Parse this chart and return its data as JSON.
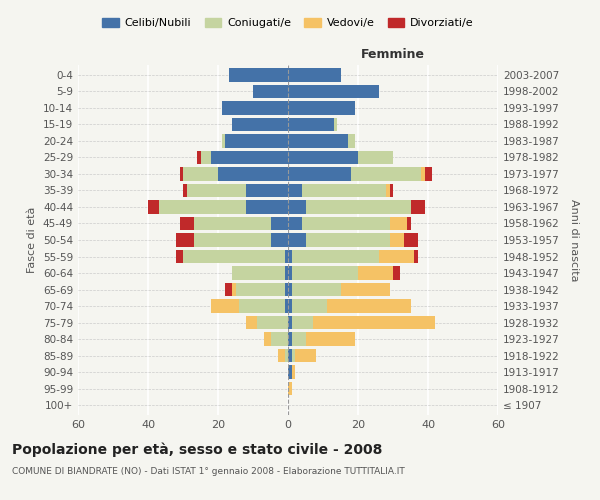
{
  "age_groups": [
    "100+",
    "95-99",
    "90-94",
    "85-89",
    "80-84",
    "75-79",
    "70-74",
    "65-69",
    "60-64",
    "55-59",
    "50-54",
    "45-49",
    "40-44",
    "35-39",
    "30-34",
    "25-29",
    "20-24",
    "15-19",
    "10-14",
    "5-9",
    "0-4"
  ],
  "birth_years": [
    "≤ 1907",
    "1908-1912",
    "1913-1917",
    "1918-1922",
    "1923-1927",
    "1928-1932",
    "1933-1937",
    "1938-1942",
    "1943-1947",
    "1948-1952",
    "1953-1957",
    "1958-1962",
    "1963-1967",
    "1968-1972",
    "1973-1977",
    "1978-1982",
    "1983-1987",
    "1988-1992",
    "1993-1997",
    "1998-2002",
    "2003-2007"
  ],
  "male": {
    "celibi": [
      0,
      0,
      0,
      0,
      0,
      0,
      1,
      1,
      1,
      1,
      5,
      5,
      12,
      12,
      20,
      22,
      18,
      16,
      19,
      10,
      17
    ],
    "coniugati": [
      0,
      0,
      0,
      1,
      5,
      9,
      13,
      14,
      15,
      29,
      22,
      22,
      25,
      17,
      10,
      3,
      1,
      0,
      0,
      0,
      0
    ],
    "vedovi": [
      0,
      0,
      0,
      2,
      2,
      3,
      8,
      1,
      0,
      0,
      0,
      0,
      0,
      0,
      0,
      0,
      0,
      0,
      0,
      0,
      0
    ],
    "divorziati": [
      0,
      0,
      0,
      0,
      0,
      0,
      0,
      2,
      0,
      2,
      5,
      4,
      3,
      1,
      1,
      1,
      0,
      0,
      0,
      0,
      0
    ]
  },
  "female": {
    "nubili": [
      0,
      0,
      1,
      1,
      1,
      1,
      1,
      1,
      1,
      1,
      5,
      4,
      5,
      4,
      18,
      20,
      17,
      13,
      19,
      26,
      15
    ],
    "coniugate": [
      0,
      0,
      0,
      1,
      4,
      6,
      10,
      14,
      19,
      25,
      24,
      25,
      30,
      24,
      20,
      10,
      2,
      1,
      0,
      0,
      0
    ],
    "vedove": [
      0,
      1,
      1,
      6,
      14,
      35,
      24,
      14,
      10,
      10,
      4,
      5,
      0,
      1,
      1,
      0,
      0,
      0,
      0,
      0,
      0
    ],
    "divorziate": [
      0,
      0,
      0,
      0,
      0,
      0,
      0,
      0,
      2,
      1,
      4,
      1,
      4,
      1,
      2,
      0,
      0,
      0,
      0,
      0,
      0
    ]
  },
  "colors": {
    "celibi": "#4472a8",
    "coniugati": "#c5d4a0",
    "vedovi": "#f5c265",
    "divorziati": "#c0292a"
  },
  "xlim": 60,
  "title": "Popolazione per età, sesso e stato civile - 2008",
  "subtitle": "COMUNE DI BIANDRATE (NO) - Dati ISTAT 1° gennaio 2008 - Elaborazione TUTTITALIA.IT",
  "ylabel_left": "Fasce di età",
  "ylabel_right": "Anni di nascita",
  "xlabel_right": "Femmine",
  "legend_labels": [
    "Celibi/Nubili",
    "Coniugati/e",
    "Vedovi/e",
    "Divorziati/e"
  ],
  "background_color": "#f5f5f0"
}
